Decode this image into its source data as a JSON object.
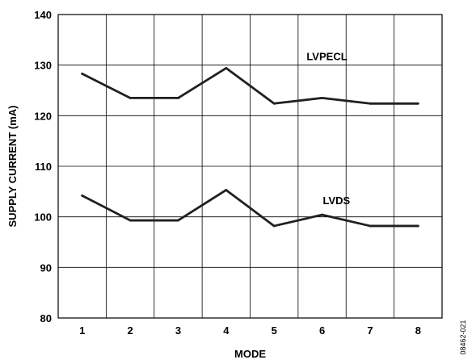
{
  "chart_data": {
    "type": "line",
    "xlabel": "MODE",
    "ylabel": "SUPPLY CURRENT (mA)",
    "x": [
      1,
      2,
      3,
      4,
      5,
      6,
      7,
      8
    ],
    "xticks": [
      "1",
      "2",
      "3",
      "4",
      "5",
      "6",
      "7",
      "8"
    ],
    "yticks": [
      "80",
      "90",
      "100",
      "110",
      "120",
      "130",
      "140"
    ],
    "xlim": [
      0.5,
      8.5
    ],
    "ylim": [
      80,
      140
    ],
    "grid": true,
    "series": [
      {
        "name": "LVPECL",
        "values": [
          128.3,
          123.5,
          123.5,
          129.4,
          122.4,
          123.5,
          122.4,
          122.4
        ]
      },
      {
        "name": "LVDS",
        "values": [
          104.2,
          99.3,
          99.3,
          105.3,
          98.2,
          100.4,
          98.2,
          98.2
        ]
      }
    ],
    "figure_id": "08462-021"
  }
}
